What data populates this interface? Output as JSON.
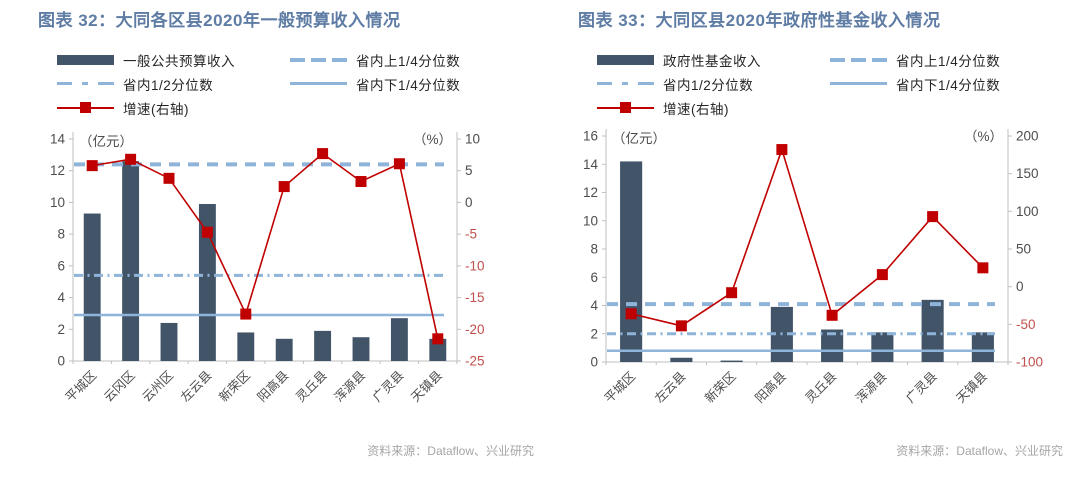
{
  "colors": {
    "bar": "#425468",
    "quartile_line": "#8FB4DA",
    "growth_line": "#C00000",
    "axis": "#BFBFBF",
    "axis_text": "#4D4D4D",
    "negative_axis_text": "#C0504D",
    "title": "#5E7CA4",
    "legend_text": "#262626",
    "source_text": "#A6A6A6"
  },
  "chart_data": [
    {
      "type": "bar+line",
      "title": "图表 32：大同各区县2020年一般预算收入情况",
      "categories": [
        "平城区",
        "云冈区",
        "云州区",
        "左云县",
        "新荣区",
        "阳高县",
        "灵丘县",
        "浑源县",
        "广灵县",
        "天镇县"
      ],
      "series": [
        {
          "name": "一般公共预算收入",
          "type": "bar",
          "axis": "left",
          "values": [
            9.3,
            12.6,
            2.4,
            9.9,
            1.8,
            1.4,
            1.9,
            1.5,
            2.7,
            1.4
          ]
        },
        {
          "name": "省内上1/4分位数",
          "type": "hline",
          "style": "dashed",
          "axis": "left",
          "value": 12.4
        },
        {
          "name": "省内1/2分位数",
          "type": "hline",
          "style": "dashdot",
          "axis": "left",
          "value": 5.4
        },
        {
          "name": "省内下1/4分位数",
          "type": "hline",
          "style": "solid",
          "axis": "left",
          "value": 2.9
        },
        {
          "name": "增速(右轴)",
          "type": "line",
          "axis": "right",
          "values": [
            5.8,
            6.8,
            3.8,
            -4.7,
            -17.6,
            2.5,
            7.7,
            3.3,
            6.1,
            -21.5
          ]
        }
      ],
      "left_axis": {
        "label": "（亿元）",
        "min": 0,
        "max": 14,
        "step": 2
      },
      "right_axis": {
        "label": "（%）",
        "min": -25,
        "max": 10,
        "step": 5
      },
      "grid": false,
      "legend_position": "top",
      "source": "资料来源：Dataflow、兴业研究"
    },
    {
      "type": "bar+line",
      "title": "图表 33：大同区县2020年政府性基金收入情况",
      "categories": [
        "平城区",
        "左云县",
        "新荣区",
        "阳高县",
        "灵丘县",
        "浑源县",
        "广灵县",
        "天镇县"
      ],
      "series": [
        {
          "name": "政府性基金收入",
          "type": "bar",
          "axis": "left",
          "values": [
            14.2,
            0.3,
            0.1,
            3.9,
            2.3,
            2.1,
            4.4,
            2.1
          ]
        },
        {
          "name": "省内上1/4分位数",
          "type": "hline",
          "style": "dashed",
          "axis": "left",
          "value": 4.1
        },
        {
          "name": "省内1/2分位数",
          "type": "hline",
          "style": "dashdot",
          "axis": "left",
          "value": 2.0
        },
        {
          "name": "省内下1/4分位数",
          "type": "hline",
          "style": "solid",
          "axis": "left",
          "value": 0.8
        },
        {
          "name": "增速(右轴)",
          "type": "line",
          "axis": "right",
          "values": [
            -36,
            -52,
            -8,
            182,
            -38,
            16,
            93,
            25
          ]
        }
      ],
      "left_axis": {
        "label": "（亿元）",
        "min": 0,
        "max": 16,
        "step": 2
      },
      "right_axis": {
        "label": "（%）",
        "min": -100,
        "max": 200,
        "step": 50
      },
      "grid": false,
      "legend_position": "top",
      "source": "资料来源：Dataflow、兴业研究"
    }
  ]
}
